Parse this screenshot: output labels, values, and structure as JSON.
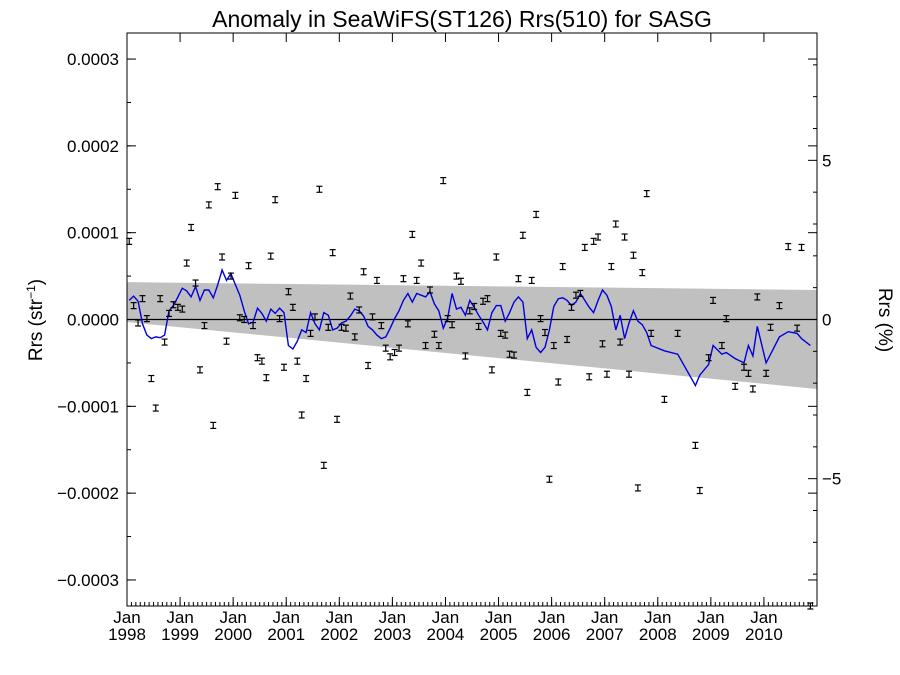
{
  "chart_data": {
    "type": "scatter",
    "title": "Anomaly in SeaWiFS(ST126) Rrs(510) for SASG",
    "ylabel_base": "Rrs (str",
    "ylabel_exp": "−1",
    "ylabel_close": ")",
    "ylabel_right": "Rrs (%)",
    "ylim": [
      -0.00033,
      0.00033
    ],
    "ylim_right": [
      -9.0,
      9.0
    ],
    "xlim": [
      "1998-01",
      "2010-12"
    ],
    "y_ticks": [
      "0.0003",
      "0.0002",
      "0.0001",
      "0.0000",
      "−0.0001",
      "−0.0002",
      "−0.0003"
    ],
    "y_right_ticks": [
      "5",
      "0",
      "−5"
    ],
    "x_ticks": [
      {
        "month": "Jan",
        "year": "1998"
      },
      {
        "month": "Jan",
        "year": "1999"
      },
      {
        "month": "Jan",
        "year": "2000"
      },
      {
        "month": "Jan",
        "year": "2001"
      },
      {
        "month": "Jan",
        "year": "2002"
      },
      {
        "month": "Jan",
        "year": "2003"
      },
      {
        "month": "Jan",
        "year": "2004"
      },
      {
        "month": "Jan",
        "year": "2005"
      },
      {
        "month": "Jan",
        "year": "2006"
      },
      {
        "month": "Jan",
        "year": "2007"
      },
      {
        "month": "Jan",
        "year": "2008"
      },
      {
        "month": "Jan",
        "year": "2009"
      },
      {
        "month": "Jan",
        "year": "2010"
      }
    ],
    "trend_band": {
      "upper": [
        [
          "1998-01",
          4.3e-05
        ],
        [
          "2010-12",
          3.4e-05
        ]
      ],
      "lower": [
        [
          "1998-01",
          -3e-06
        ],
        [
          "2010-12",
          -8e-05
        ]
      ]
    },
    "colors": {
      "line": "#0000dd",
      "band": "#c0c0c0",
      "points": "#000000"
    },
    "series": [
      {
        "values": [
          [
            "1998-01",
            9e-05
          ],
          [
            "1998-02",
            1.6e-05
          ],
          [
            "1998-03",
            -4e-06
          ],
          [
            "1998-04",
            2.4e-05
          ],
          [
            "1998-05",
            1e-06
          ],
          [
            "1998-06",
            -6.8e-05
          ],
          [
            "1998-07",
            -0.000102
          ],
          [
            "1998-08",
            2.4e-05
          ],
          [
            "1998-09",
            -2.6e-05
          ],
          [
            "1998-10",
            7e-06
          ],
          [
            "1998-11",
            1.7e-05
          ],
          [
            "1998-12",
            1.4e-05
          ],
          [
            "1999-01",
            1.2e-05
          ],
          [
            "1999-02",
            6.5e-05
          ],
          [
            "1999-03",
            0.000106
          ],
          [
            "1999-04",
            4.2e-05
          ],
          [
            "1999-05",
            -5.8e-05
          ],
          [
            "1999-06",
            -7e-06
          ],
          [
            "1999-07",
            0.000132
          ],
          [
            "1999-08",
            -0.000122
          ],
          [
            "1999-09",
            0.000153
          ],
          [
            "1999-10",
            7.2e-05
          ],
          [
            "1999-11",
            -2.5e-05
          ],
          [
            "1999-12",
            5e-05
          ],
          [
            "2000-01",
            0.000143
          ],
          [
            "2000-02",
            2e-06
          ],
          [
            "2000-03",
            0.0
          ],
          [
            "2000-04",
            6.2e-05
          ],
          [
            "2000-05",
            -7e-06
          ],
          [
            "2000-06",
            -4.4e-05
          ],
          [
            "2000-07",
            -4.8e-05
          ],
          [
            "2000-08",
            -6.7e-05
          ],
          [
            "2000-09",
            7.3e-05
          ],
          [
            "2000-10",
            0.000138
          ],
          [
            "2000-11",
            1e-06
          ],
          [
            "2000-12",
            -5.5e-05
          ],
          [
            "2001-01",
            3.2e-05
          ],
          [
            "2001-02",
            1.4e-05
          ],
          [
            "2001-03",
            -4.8e-05
          ],
          [
            "2001-04",
            -0.00011
          ],
          [
            "2001-05",
            -6.8e-05
          ],
          [
            "2001-06",
            -1.6e-05
          ],
          [
            "2001-07",
            3e-06
          ],
          [
            "2001-08",
            0.00015
          ],
          [
            "2001-09",
            -0.000168
          ],
          [
            "2001-10",
            -9e-06
          ],
          [
            "2001-11",
            7.7e-05
          ],
          [
            "2001-12",
            -0.000115
          ],
          [
            "2002-01",
            -9e-06
          ],
          [
            "2002-02",
            -1e-05
          ],
          [
            "2002-03",
            2.7e-05
          ],
          [
            "2002-04",
            -2e-05
          ],
          [
            "2002-05",
            1.1e-05
          ],
          [
            "2002-06",
            5.5e-05
          ],
          [
            "2002-07",
            -5.3e-05
          ],
          [
            "2002-08",
            3e-06
          ],
          [
            "2002-09",
            4.5e-05
          ],
          [
            "2002-10",
            -7e-06
          ],
          [
            "2002-11",
            -3.3e-05
          ],
          [
            "2002-12",
            -4.3e-05
          ],
          [
            "2003-01",
            -3.8e-05
          ],
          [
            "2003-02",
            -3.3e-05
          ],
          [
            "2003-03",
            4.7e-05
          ],
          [
            "2003-04",
            -5e-06
          ],
          [
            "2003-05",
            9.8e-05
          ],
          [
            "2003-06",
            4.5e-05
          ],
          [
            "2003-07",
            6.5e-05
          ],
          [
            "2003-08",
            -3e-05
          ],
          [
            "2003-09",
            3.4e-05
          ],
          [
            "2003-10",
            -1.7e-05
          ],
          [
            "2003-11",
            -3e-05
          ],
          [
            "2003-12",
            0.00016
          ],
          [
            "2004-01",
            1e-06
          ],
          [
            "2004-02",
            -6e-06
          ],
          [
            "2004-03",
            5e-05
          ],
          [
            "2004-04",
            4.4e-05
          ],
          [
            "2004-05",
            -4.2e-05
          ],
          [
            "2004-06",
            1e-05
          ],
          [
            "2004-07",
            1.5e-05
          ],
          [
            "2004-08",
            -8e-06
          ],
          [
            "2004-09",
            2.1e-05
          ],
          [
            "2004-10",
            2.4e-05
          ],
          [
            "2004-11",
            -5.8e-05
          ],
          [
            "2004-12",
            7.2e-05
          ],
          [
            "2005-01",
            -1.6e-05
          ],
          [
            "2005-02",
            -1.8e-05
          ],
          [
            "2005-03",
            -4e-05
          ],
          [
            "2005-04",
            -4.1e-05
          ],
          [
            "2005-05",
            4.7e-05
          ],
          [
            "2005-06",
            9.7e-05
          ],
          [
            "2005-07",
            -8.4e-05
          ],
          [
            "2005-08",
            4.5e-05
          ],
          [
            "2005-09",
            0.000121
          ],
          [
            "2005-10",
            1e-06
          ],
          [
            "2005-11",
            -1.5e-05
          ],
          [
            "2005-12",
            -0.000184
          ],
          [
            "2006-01",
            -3e-05
          ],
          [
            "2006-02",
            -7.2e-05
          ],
          [
            "2006-03",
            6.1e-05
          ],
          [
            "2006-04",
            -2.3e-05
          ],
          [
            "2006-05",
            1.4e-05
          ],
          [
            "2006-06",
            2.8e-05
          ],
          [
            "2006-07",
            3e-05
          ],
          [
            "2006-08",
            8.3e-05
          ],
          [
            "2006-09",
            -6.6e-05
          ],
          [
            "2006-10",
            9e-05
          ],
          [
            "2006-11",
            9.5e-05
          ],
          [
            "2006-12",
            -2.8e-05
          ],
          [
            "2007-01",
            -6.3e-05
          ],
          [
            "2007-02",
            6.1e-05
          ],
          [
            "2007-03",
            0.00011
          ],
          [
            "2007-04",
            -2.6e-05
          ],
          [
            "2007-05",
            9.5e-05
          ],
          [
            "2007-06",
            -6.3e-05
          ],
          [
            "2007-07",
            7.4e-05
          ],
          [
            "2007-08",
            -0.000194
          ],
          [
            "2007-09",
            5.4e-05
          ],
          [
            "2007-10",
            0.000145
          ],
          [
            "2007-11",
            -1.6e-05
          ],
          [
            "2008-02",
            -9.2e-05
          ],
          [
            "2008-05",
            -1.6e-05
          ],
          [
            "2008-09",
            -0.000145
          ],
          [
            "2008-10",
            -0.000197
          ],
          [
            "2008-12",
            -4.4e-05
          ],
          [
            "2009-01",
            2.2e-05
          ],
          [
            "2009-03",
            -3e-05
          ],
          [
            "2009-04",
            1e-06
          ],
          [
            "2009-06",
            -7.7e-05
          ],
          [
            "2009-08",
            -5.5e-05
          ],
          [
            "2009-09",
            -6.2e-05
          ],
          [
            "2009-10",
            -8e-05
          ],
          [
            "2009-11",
            2.6e-05
          ],
          [
            "2010-01",
            -6.2e-05
          ],
          [
            "2010-02",
            -9e-06
          ],
          [
            "2010-04",
            1.6e-05
          ],
          [
            "2010-06",
            8.4e-05
          ],
          [
            "2010-08",
            -1e-05
          ],
          [
            "2010-09",
            8.3e-05
          ],
          [
            "2010-11",
            -0.00033
          ]
        ]
      }
    ],
    "line_series": {
      "values": [
        [
          "1998-01",
          2.2e-05
        ],
        [
          "1998-02",
          2.7e-05
        ],
        [
          "1998-03",
          2.1e-05
        ],
        [
          "1998-04",
          -5e-06
        ],
        [
          "1998-05",
          -1.8e-05
        ],
        [
          "1998-06",
          -2.2e-05
        ],
        [
          "1998-07",
          -2e-05
        ],
        [
          "1998-08",
          -2.1e-05
        ],
        [
          "1998-09",
          -1.8e-05
        ],
        [
          "1998-10",
          1e-05
        ],
        [
          "1998-11",
          1.6e-05
        ],
        [
          "1998-12",
          2.6e-05
        ],
        [
          "1999-01",
          3.6e-05
        ],
        [
          "1999-02",
          3.3e-05
        ],
        [
          "1999-03",
          2.6e-05
        ],
        [
          "1999-04",
          3.8e-05
        ],
        [
          "1999-05",
          2.2e-05
        ],
        [
          "1999-06",
          3.4e-05
        ],
        [
          "1999-07",
          3.4e-05
        ],
        [
          "1999-08",
          2.5e-05
        ],
        [
          "1999-09",
          4e-05
        ],
        [
          "1999-10",
          5.7e-05
        ],
        [
          "1999-11",
          4.5e-05
        ],
        [
          "1999-12",
          5.3e-05
        ],
        [
          "2000-01",
          4e-05
        ],
        [
          "2000-02",
          2.8e-05
        ],
        [
          "2000-03",
          1e-05
        ],
        [
          "2000-04",
          -5e-06
        ],
        [
          "2000-05",
          -3e-06
        ],
        [
          "2000-06",
          1.3e-05
        ],
        [
          "2000-07",
          7e-06
        ],
        [
          "2000-08",
          -2e-06
        ],
        [
          "2000-09",
          1.2e-05
        ],
        [
          "2000-10",
          7e-06
        ],
        [
          "2000-11",
          1.3e-05
        ],
        [
          "2000-12",
          8e-06
        ],
        [
          "2001-01",
          -3e-05
        ],
        [
          "2001-02",
          -3.4e-05
        ],
        [
          "2001-03",
          -2.5e-05
        ],
        [
          "2001-04",
          -1.2e-05
        ],
        [
          "2001-05",
          -1.5e-05
        ],
        [
          "2001-06",
          8e-06
        ],
        [
          "2001-07",
          -5e-06
        ],
        [
          "2001-08",
          -1.2e-05
        ],
        [
          "2001-09",
          8e-06
        ],
        [
          "2001-10",
          5e-06
        ],
        [
          "2001-11",
          -1.2e-05
        ],
        [
          "2001-12",
          -1e-05
        ],
        [
          "2002-01",
          -4e-06
        ],
        [
          "2002-02",
          -2e-06
        ],
        [
          "2002-03",
          4e-06
        ],
        [
          "2002-04",
          1.2e-05
        ],
        [
          "2002-05",
          1e-05
        ],
        [
          "2002-06",
          4e-06
        ],
        [
          "2002-07",
          -8e-06
        ],
        [
          "2002-08",
          -1.2e-05
        ],
        [
          "2002-09",
          -1.8e-05
        ],
        [
          "2002-10",
          -2.2e-05
        ],
        [
          "2002-11",
          -2e-05
        ],
        [
          "2002-12",
          -1e-05
        ],
        [
          "2003-01",
          1e-06
        ],
        [
          "2003-02",
          1e-05
        ],
        [
          "2003-03",
          2.2e-05
        ],
        [
          "2003-04",
          3e-05
        ],
        [
          "2003-05",
          2e-05
        ],
        [
          "2003-06",
          3e-05
        ],
        [
          "2003-07",
          2.8e-05
        ],
        [
          "2003-08",
          2.6e-05
        ],
        [
          "2003-09",
          3.2e-05
        ],
        [
          "2003-10",
          1.8e-05
        ],
        [
          "2003-11",
          1e-05
        ],
        [
          "2003-12",
          -1e-05
        ],
        [
          "2004-01",
          2e-06
        ],
        [
          "2004-02",
          3e-05
        ],
        [
          "2004-03",
          1.2e-05
        ],
        [
          "2004-04",
          1.4e-05
        ],
        [
          "2004-05",
          5e-06
        ],
        [
          "2004-06",
          2.2e-05
        ],
        [
          "2004-07",
          1.4e-05
        ],
        [
          "2004-08",
          5e-06
        ],
        [
          "2004-09",
          -3e-06
        ],
        [
          "2004-10",
          -1.2e-05
        ],
        [
          "2004-11",
          8e-06
        ],
        [
          "2004-12",
          1.6e-05
        ],
        [
          "2005-01",
          1.6e-05
        ],
        [
          "2005-02",
          -2e-06
        ],
        [
          "2005-03",
          8e-06
        ],
        [
          "2005-04",
          2e-05
        ],
        [
          "2005-05",
          2.6e-05
        ],
        [
          "2005-06",
          2e-05
        ],
        [
          "2005-07",
          -2.2e-05
        ],
        [
          "2005-08",
          -1.2e-05
        ],
        [
          "2005-09",
          -3.2e-05
        ],
        [
          "2005-10",
          -3.8e-05
        ],
        [
          "2005-11",
          -3.2e-05
        ],
        [
          "2005-12",
          -1.2e-05
        ],
        [
          "2006-01",
          1.5e-05
        ],
        [
          "2006-02",
          2.4e-05
        ],
        [
          "2006-03",
          2.5e-05
        ],
        [
          "2006-04",
          2.2e-05
        ],
        [
          "2006-05",
          1.6e-05
        ],
        [
          "2006-06",
          2e-05
        ],
        [
          "2006-07",
          3e-05
        ],
        [
          "2006-08",
          2.2e-05
        ],
        [
          "2006-09",
          1.4e-05
        ],
        [
          "2006-10",
          8e-06
        ],
        [
          "2006-11",
          2.2e-05
        ],
        [
          "2006-12",
          3.4e-05
        ],
        [
          "2007-01",
          2.8e-05
        ],
        [
          "2007-02",
          1.5e-05
        ],
        [
          "2007-03",
          -1.2e-05
        ],
        [
          "2007-04",
          5e-06
        ],
        [
          "2007-05",
          -2.2e-05
        ],
        [
          "2007-06",
          -4e-06
        ],
        [
          "2007-07",
          1e-05
        ],
        [
          "2007-08",
          -2e-06
        ],
        [
          "2007-09",
          -6e-06
        ],
        [
          "2007-10",
          -1.5e-05
        ],
        [
          "2007-11",
          -3e-05
        ],
        [
          "2008-02",
          -3.6e-05
        ],
        [
          "2008-05",
          -4e-05
        ],
        [
          "2008-09",
          -7.6e-05
        ],
        [
          "2008-10",
          -6.4e-05
        ],
        [
          "2008-12",
          -5.2e-05
        ],
        [
          "2009-01",
          -3e-05
        ],
        [
          "2009-03",
          -4e-05
        ],
        [
          "2009-04",
          -3.8e-05
        ],
        [
          "2009-06",
          -4.5e-05
        ],
        [
          "2009-08",
          -5e-05
        ],
        [
          "2009-09",
          -3e-05
        ],
        [
          "2009-10",
          -4.2e-05
        ],
        [
          "2009-11",
          -8e-06
        ],
        [
          "2010-01",
          -5e-05
        ],
        [
          "2010-02",
          -4e-05
        ],
        [
          "2010-04",
          -2e-05
        ],
        [
          "2010-06",
          -1.4e-05
        ],
        [
          "2010-08",
          -1.6e-05
        ],
        [
          "2010-09",
          -2.2e-05
        ],
        [
          "2010-11",
          -3e-05
        ]
      ]
    }
  }
}
